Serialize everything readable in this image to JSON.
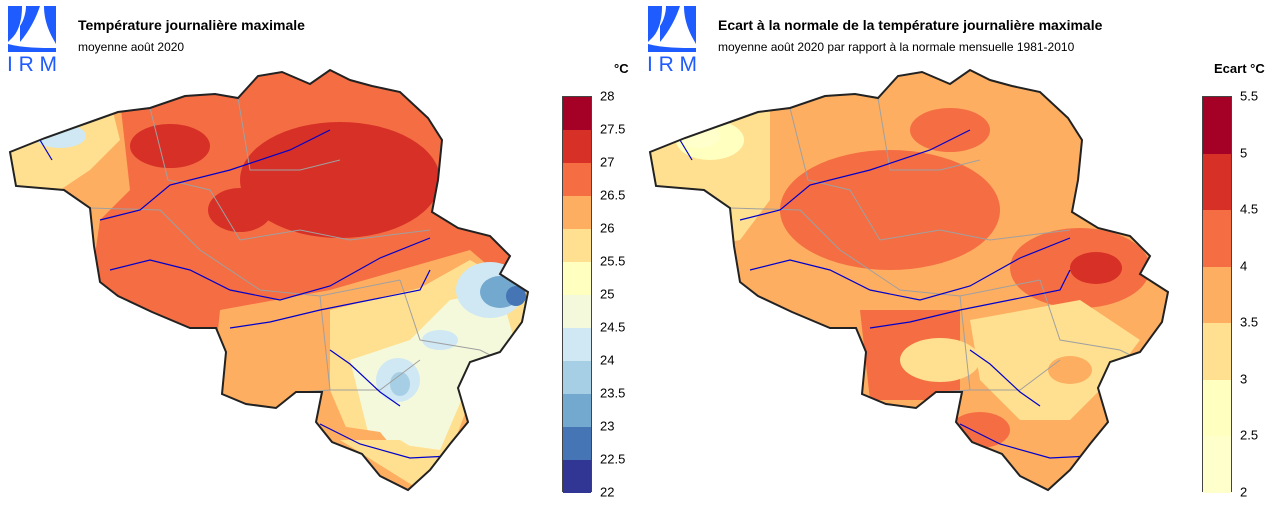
{
  "panels": [
    {
      "logo_text": "IRM",
      "title": "Température journalière maximale",
      "subtitle": "moyenne août 2020",
      "unit_label": "°C",
      "legend": {
        "ticks": [
          "28",
          "27.5",
          "27",
          "26.5",
          "26",
          "25.5",
          "25",
          "24.5",
          "24",
          "23.5",
          "23",
          "22.5",
          "22"
        ],
        "colors": [
          "#a50026",
          "#d73027",
          "#f46d43",
          "#fdae61",
          "#fee090",
          "#ffffbf",
          "#f5f9dc",
          "#cfe8f3",
          "#a6cfe5",
          "#74a9cf",
          "#4575b4",
          "#313695"
        ]
      }
    },
    {
      "logo_text": "IRM",
      "title": "Ecart à la normale de la température journalière maximale",
      "subtitle": "moyenne août 2020 par rapport à la normale mensuelle 1981-2010",
      "unit_label": "Ecart  °C",
      "legend": {
        "ticks": [
          "5.5",
          "5",
          "4.5",
          "4",
          "3.5",
          "3",
          "2.5",
          "2"
        ],
        "colors": [
          "#a50026",
          "#d73027",
          "#f46d43",
          "#fdae61",
          "#fee090",
          "#ffffbf",
          "#ffffcc"
        ]
      }
    }
  ],
  "map_colors": {
    "logo_blue": "#1f5cff",
    "border": "#222222",
    "river": "#0000cc",
    "province_line": "#a0a0a0"
  }
}
